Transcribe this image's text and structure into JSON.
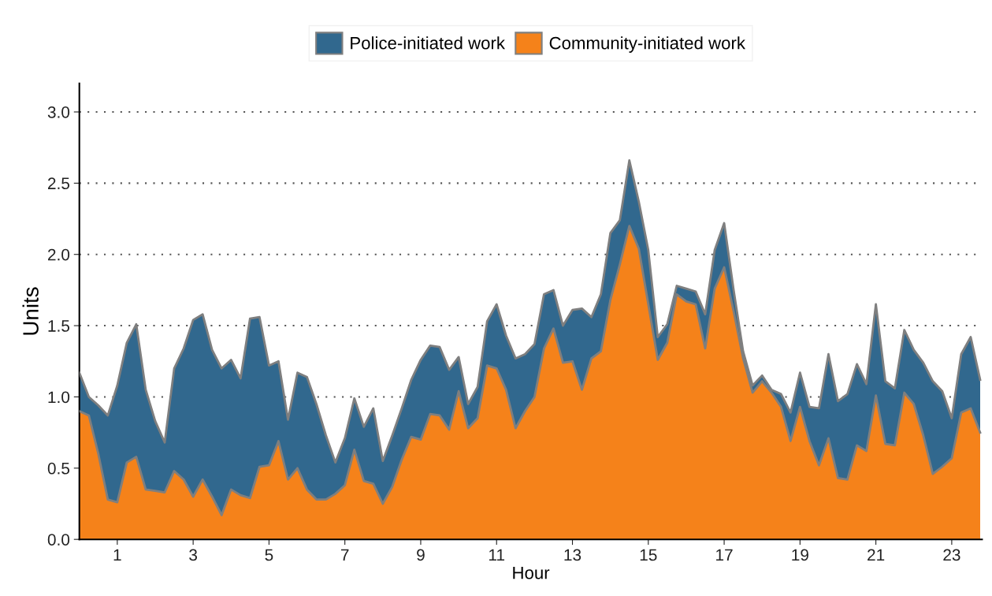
{
  "chart_data": {
    "type": "area",
    "stacked": true,
    "xlabel": "Hour",
    "ylabel": "Units",
    "x": [
      0,
      0.25,
      0.5,
      0.75,
      1,
      1.25,
      1.5,
      1.75,
      2,
      2.25,
      2.5,
      2.75,
      3,
      3.25,
      3.5,
      3.75,
      4,
      4.25,
      4.5,
      4.75,
      5,
      5.25,
      5.5,
      5.75,
      6,
      6.25,
      6.5,
      6.75,
      7,
      7.25,
      7.5,
      7.75,
      8,
      8.25,
      8.5,
      8.75,
      9,
      9.25,
      9.5,
      9.75,
      10,
      10.25,
      10.5,
      10.75,
      11,
      11.25,
      11.5,
      11.75,
      12,
      12.25,
      12.5,
      12.75,
      13,
      13.25,
      13.5,
      13.75,
      14,
      14.25,
      14.5,
      14.75,
      15,
      15.25,
      15.5,
      15.75,
      16,
      16.25,
      16.5,
      16.75,
      17,
      17.25,
      17.5,
      17.75,
      18,
      18.25,
      18.5,
      18.75,
      19,
      19.25,
      19.5,
      19.75,
      20,
      20.25,
      20.5,
      20.75,
      21,
      21.25,
      21.5,
      21.75,
      22,
      22.25,
      22.5,
      22.75,
      23,
      23.25,
      23.5,
      23.75
    ],
    "series": [
      {
        "name": "Community-initiated work",
        "color": "#f5821a",
        "values": [
          0.9,
          0.87,
          0.6,
          0.28,
          0.26,
          0.54,
          0.58,
          0.35,
          0.34,
          0.33,
          0.48,
          0.42,
          0.3,
          0.42,
          0.3,
          0.17,
          0.35,
          0.31,
          0.29,
          0.51,
          0.52,
          0.69,
          0.42,
          0.5,
          0.35,
          0.28,
          0.28,
          0.32,
          0.38,
          0.63,
          0.41,
          0.39,
          0.25,
          0.37,
          0.56,
          0.72,
          0.7,
          0.88,
          0.87,
          0.77,
          1.04,
          0.78,
          0.85,
          1.22,
          1.2,
          1.05,
          0.78,
          0.9,
          1.0,
          1.34,
          1.48,
          1.24,
          1.25,
          1.05,
          1.27,
          1.32,
          1.68,
          1.93,
          2.2,
          2.04,
          1.65,
          1.26,
          1.38,
          1.72,
          1.67,
          1.65,
          1.34,
          1.76,
          1.91,
          1.6,
          1.27,
          1.03,
          1.11,
          1.03,
          0.93,
          0.69,
          0.93,
          0.69,
          0.52,
          0.71,
          0.43,
          0.42,
          0.66,
          0.62,
          1.01,
          0.67,
          0.66,
          1.03,
          0.95,
          0.73,
          0.46,
          0.51,
          0.57,
          0.89,
          0.92,
          0.75
        ]
      },
      {
        "name": "Police-initiated work",
        "color": "#31688e",
        "values": [
          0.27,
          0.13,
          0.34,
          0.59,
          0.82,
          0.84,
          0.93,
          0.7,
          0.49,
          0.35,
          0.72,
          0.92,
          1.24,
          1.16,
          1.03,
          1.03,
          0.91,
          0.82,
          1.26,
          1.05,
          0.7,
          0.56,
          0.42,
          0.67,
          0.79,
          0.67,
          0.45,
          0.22,
          0.33,
          0.36,
          0.38,
          0.53,
          0.3,
          0.36,
          0.36,
          0.4,
          0.56,
          0.48,
          0.48,
          0.42,
          0.24,
          0.17,
          0.22,
          0.31,
          0.45,
          0.38,
          0.49,
          0.4,
          0.37,
          0.38,
          0.27,
          0.26,
          0.36,
          0.57,
          0.29,
          0.4,
          0.47,
          0.31,
          0.46,
          0.33,
          0.38,
          0.16,
          0.13,
          0.06,
          0.09,
          0.09,
          0.24,
          0.27,
          0.31,
          0.15,
          0.05,
          0.05,
          0.04,
          0.02,
          0.09,
          0.2,
          0.24,
          0.24,
          0.4,
          0.59,
          0.54,
          0.6,
          0.57,
          0.47,
          0.64,
          0.44,
          0.4,
          0.44,
          0.38,
          0.51,
          0.65,
          0.53,
          0.28,
          0.41,
          0.5,
          0.37
        ]
      }
    ],
    "xlim": [
      0,
      23.8
    ],
    "xticks": [
      1,
      3,
      5,
      7,
      9,
      11,
      13,
      15,
      17,
      19,
      21,
      23
    ],
    "ylim": [
      0,
      3.2
    ],
    "yticks": [
      {
        "value": 0,
        "label": "0.0"
      },
      {
        "value": 0.5,
        "label": "0.5"
      },
      {
        "value": 1,
        "label": "1.0"
      },
      {
        "value": 1.5,
        "label": "1.5"
      },
      {
        "value": 2,
        "label": "2.0"
      },
      {
        "value": 2.5,
        "label": "2.5"
      },
      {
        "value": 3,
        "label": "3.0"
      }
    ],
    "grid": "y",
    "legend": "top"
  }
}
